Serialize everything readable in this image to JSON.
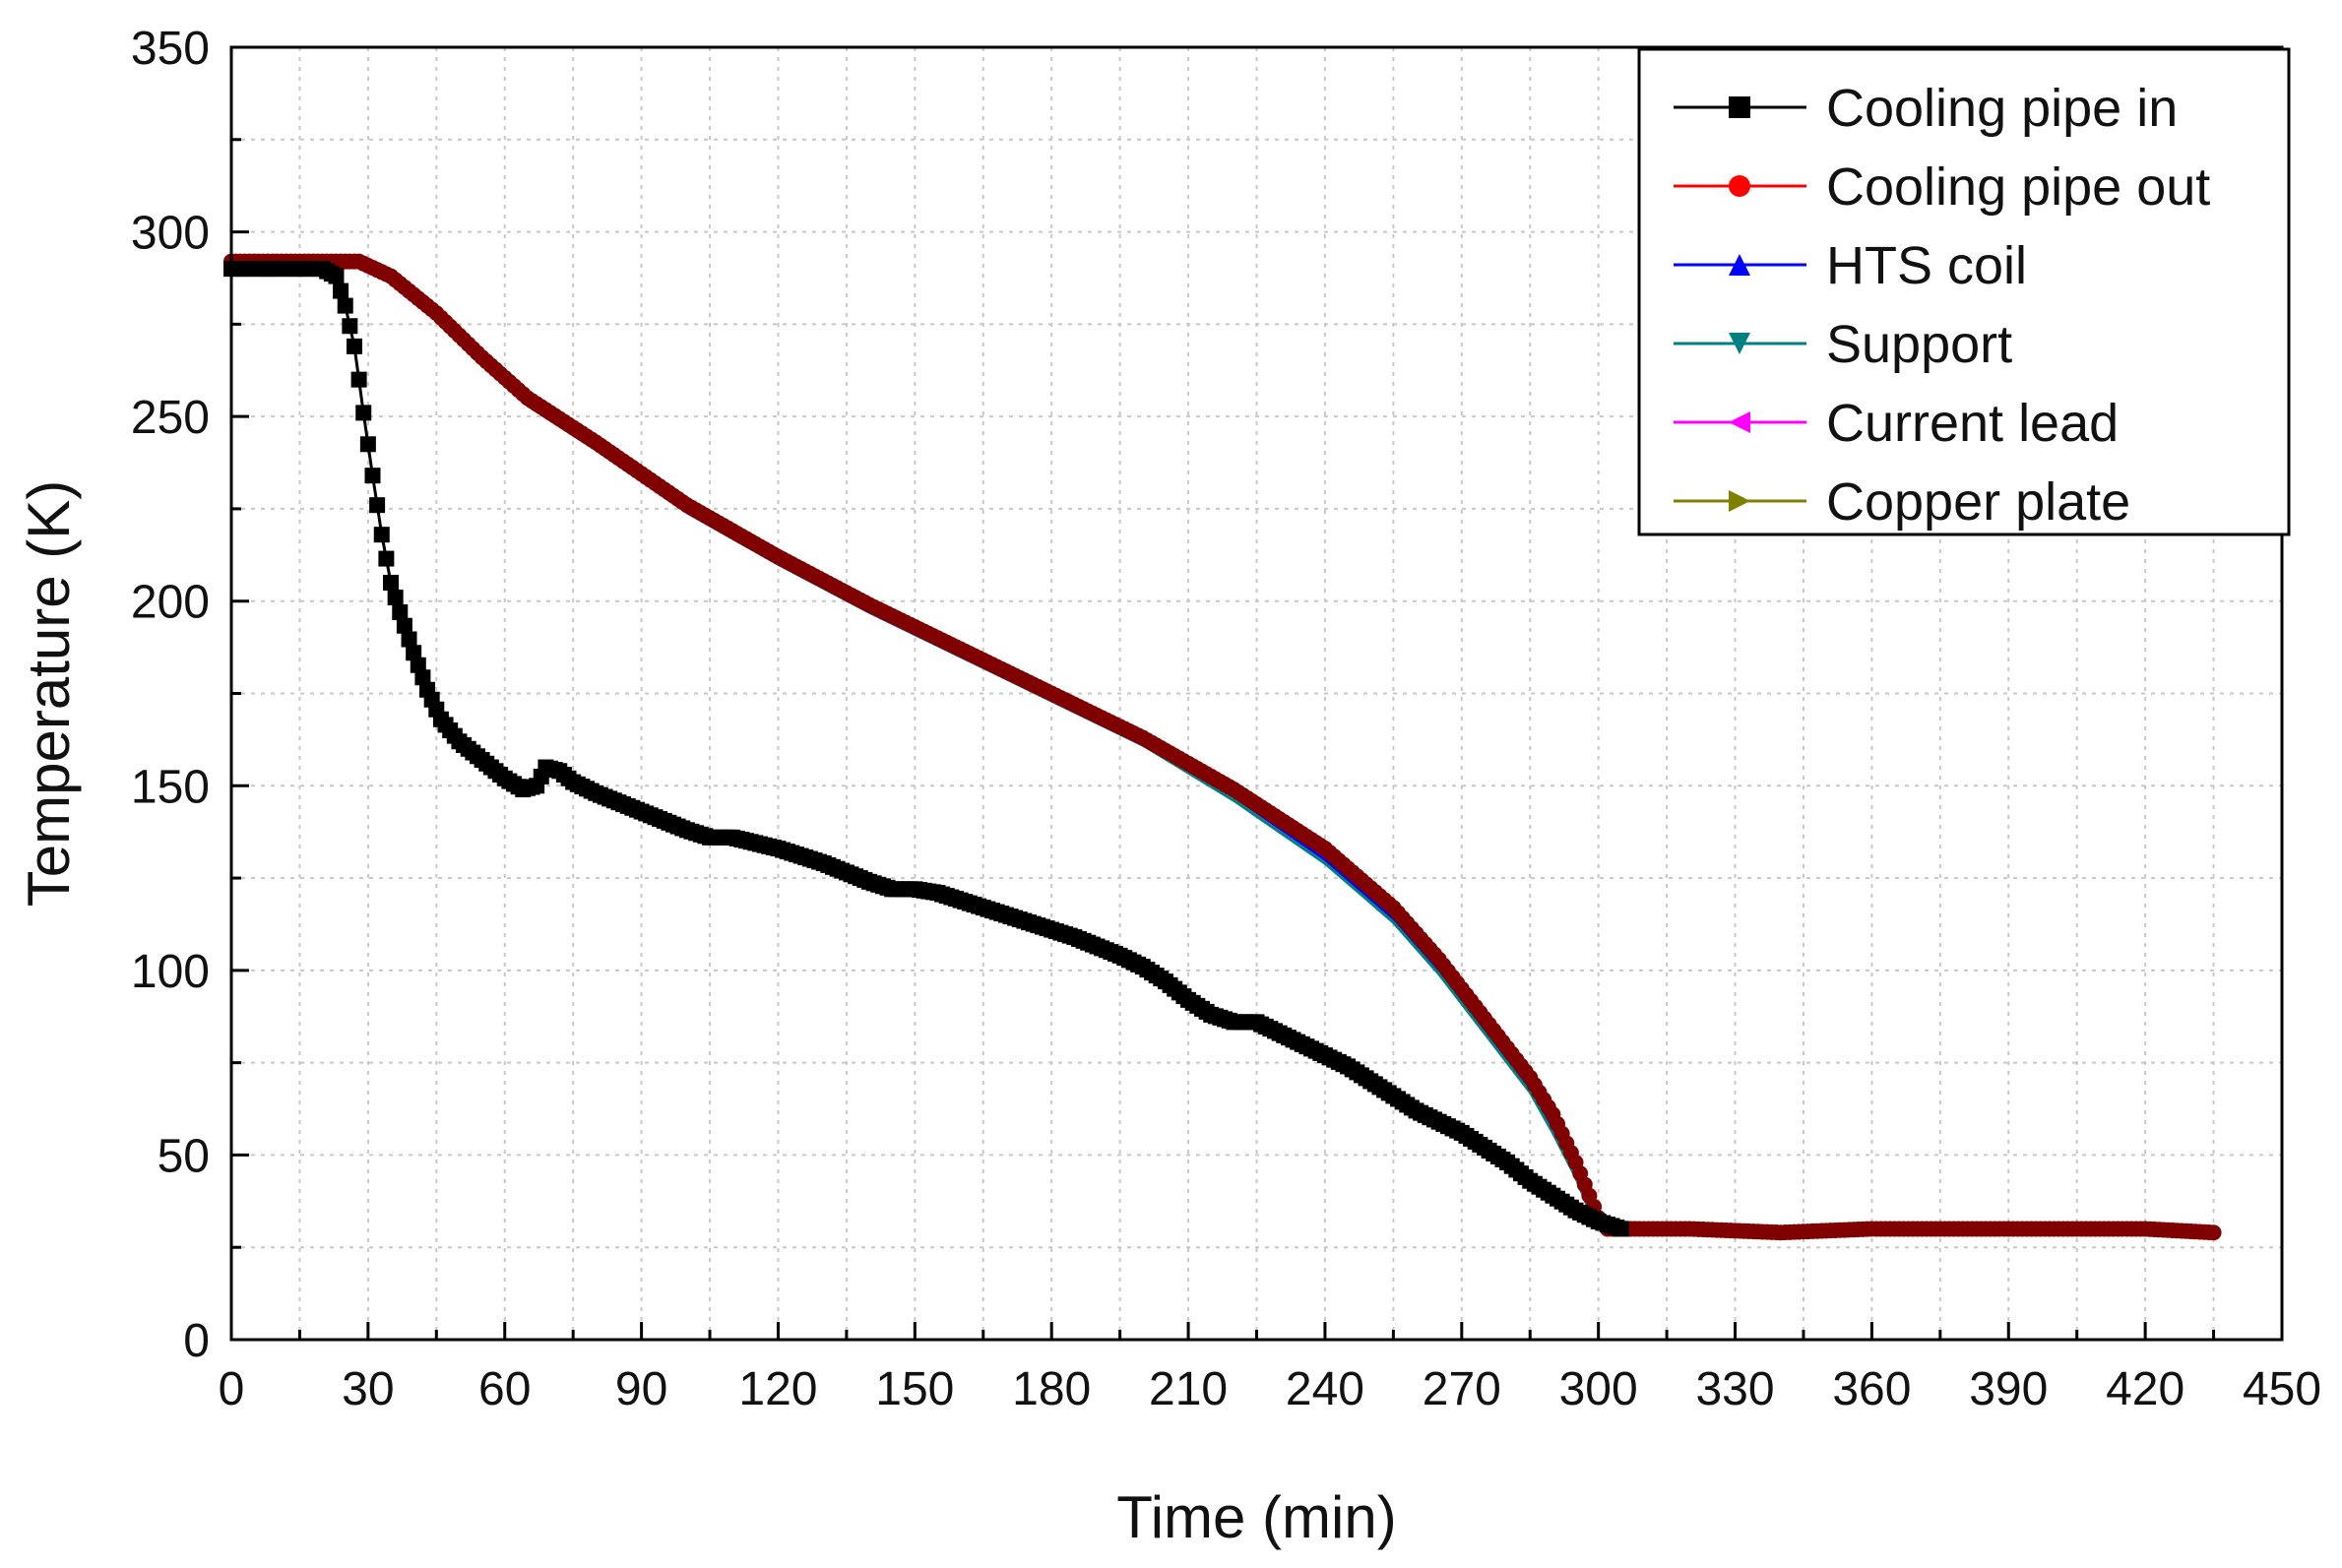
{
  "chart_data": {
    "type": "line",
    "xlabel": "Time (min)",
    "ylabel": "Temperature (K)",
    "xlim": [
      0,
      450
    ],
    "ylim": [
      0,
      350
    ],
    "xticks": [
      0,
      30,
      60,
      90,
      120,
      150,
      180,
      210,
      240,
      270,
      300,
      330,
      360,
      390,
      420,
      450
    ],
    "yticks": [
      0,
      50,
      100,
      150,
      200,
      250,
      300,
      350
    ],
    "grid": true,
    "legend_position": "top-right",
    "series": [
      {
        "name": "Cooling pipe in",
        "color": "#000000",
        "marker": "square",
        "points": [
          [
            0,
            290
          ],
          [
            10,
            290
          ],
          [
            20,
            290
          ],
          [
            23,
            288
          ],
          [
            25,
            280
          ],
          [
            27,
            269
          ],
          [
            29,
            251
          ],
          [
            31,
            234
          ],
          [
            33,
            218
          ],
          [
            35,
            205
          ],
          [
            37,
            197
          ],
          [
            40,
            186
          ],
          [
            43,
            176
          ],
          [
            46,
            168
          ],
          [
            50,
            162
          ],
          [
            55,
            157
          ],
          [
            60,
            152
          ],
          [
            64,
            149
          ],
          [
            67,
            150
          ],
          [
            69,
            155
          ],
          [
            72,
            154
          ],
          [
            75,
            151
          ],
          [
            80,
            148
          ],
          [
            90,
            143
          ],
          [
            100,
            138
          ],
          [
            105,
            136
          ],
          [
            110,
            136
          ],
          [
            120,
            133
          ],
          [
            130,
            129
          ],
          [
            140,
            124
          ],
          [
            145,
            122
          ],
          [
            150,
            122
          ],
          [
            155,
            121
          ],
          [
            165,
            117
          ],
          [
            175,
            113
          ],
          [
            185,
            109
          ],
          [
            195,
            104
          ],
          [
            200,
            101
          ],
          [
            205,
            97
          ],
          [
            210,
            92
          ],
          [
            215,
            88
          ],
          [
            220,
            86
          ],
          [
            225,
            86
          ],
          [
            230,
            83
          ],
          [
            240,
            77
          ],
          [
            245,
            74
          ],
          [
            250,
            70
          ],
          [
            255,
            66
          ],
          [
            260,
            62
          ],
          [
            265,
            59
          ],
          [
            270,
            56
          ],
          [
            275,
            52
          ],
          [
            280,
            48
          ],
          [
            285,
            43
          ],
          [
            290,
            39
          ],
          [
            295,
            35
          ],
          [
            300,
            32
          ],
          [
            305,
            30
          ]
        ]
      },
      {
        "name": "Cooling pipe out",
        "color": "#ff0000",
        "marker": "circle",
        "points": [
          [
            0,
            292
          ],
          [
            20,
            292
          ],
          [
            28,
            292
          ],
          [
            35,
            288
          ],
          [
            45,
            277
          ],
          [
            55,
            265
          ],
          [
            65,
            254
          ],
          [
            80,
            242
          ],
          [
            100,
            225
          ],
          [
            120,
            211
          ],
          [
            140,
            198
          ],
          [
            160,
            186
          ],
          [
            180,
            174
          ],
          [
            200,
            162
          ],
          [
            220,
            148
          ],
          [
            240,
            132
          ],
          [
            255,
            116
          ],
          [
            265,
            102
          ],
          [
            275,
            86
          ],
          [
            285,
            70
          ],
          [
            290,
            60
          ],
          [
            295,
            47
          ],
          [
            298,
            38
          ],
          [
            300,
            32
          ],
          [
            302,
            30
          ],
          [
            320,
            30
          ],
          [
            340,
            29
          ],
          [
            360,
            30
          ],
          [
            380,
            30
          ],
          [
            400,
            30
          ],
          [
            420,
            30
          ],
          [
            435,
            29
          ]
        ]
      },
      {
        "name": "HTS coil",
        "color": "#0000ff",
        "marker": "triangle-up",
        "points": [
          [
            0,
            291
          ],
          [
            20,
            291
          ],
          [
            28,
            291
          ],
          [
            35,
            287
          ],
          [
            45,
            276
          ],
          [
            55,
            264
          ],
          [
            65,
            253
          ],
          [
            80,
            241
          ],
          [
            100,
            224
          ],
          [
            120,
            210
          ],
          [
            140,
            197
          ],
          [
            160,
            185
          ],
          [
            180,
            173
          ],
          [
            200,
            161
          ],
          [
            220,
            147
          ],
          [
            240,
            130
          ],
          [
            255,
            114
          ],
          [
            265,
            100
          ],
          [
            275,
            84
          ],
          [
            285,
            68
          ],
          [
            290,
            57
          ],
          [
            295,
            45
          ],
          [
            298,
            36
          ],
          [
            300,
            30
          ],
          [
            302,
            29
          ],
          [
            320,
            29
          ],
          [
            340,
            28
          ],
          [
            360,
            29
          ],
          [
            380,
            29
          ],
          [
            400,
            29
          ],
          [
            420,
            29
          ],
          [
            435,
            28
          ]
        ]
      },
      {
        "name": "Support",
        "color": "#008080",
        "marker": "triangle-down",
        "points": [
          [
            0,
            291
          ],
          [
            20,
            291
          ],
          [
            28,
            291
          ],
          [
            35,
            287
          ],
          [
            45,
            276
          ],
          [
            55,
            264
          ],
          [
            65,
            253
          ],
          [
            80,
            241
          ],
          [
            100,
            224
          ],
          [
            120,
            210
          ],
          [
            140,
            197
          ],
          [
            160,
            185
          ],
          [
            180,
            173
          ],
          [
            200,
            161
          ],
          [
            220,
            146
          ],
          [
            240,
            129
          ],
          [
            255,
            113
          ],
          [
            265,
            99
          ],
          [
            275,
            83
          ],
          [
            285,
            67
          ],
          [
            290,
            56
          ],
          [
            295,
            44
          ],
          [
            298,
            35
          ],
          [
            300,
            30
          ],
          [
            302,
            29
          ],
          [
            320,
            29
          ],
          [
            340,
            28
          ],
          [
            360,
            29
          ],
          [
            380,
            29
          ],
          [
            400,
            29
          ],
          [
            420,
            29
          ],
          [
            435,
            28
          ]
        ]
      },
      {
        "name": "Current lead",
        "color": "#ff00ff",
        "marker": "triangle-left",
        "points": [
          [
            0,
            292
          ],
          [
            20,
            292
          ],
          [
            28,
            292
          ],
          [
            35,
            288
          ],
          [
            45,
            277
          ],
          [
            55,
            265
          ],
          [
            65,
            254
          ],
          [
            80,
            242
          ],
          [
            100,
            225
          ],
          [
            120,
            211
          ],
          [
            140,
            198
          ],
          [
            160,
            186
          ],
          [
            180,
            174
          ],
          [
            200,
            162
          ],
          [
            220,
            148
          ],
          [
            240,
            132
          ],
          [
            255,
            116
          ],
          [
            265,
            102
          ],
          [
            275,
            86
          ],
          [
            285,
            70
          ],
          [
            290,
            60
          ],
          [
            295,
            47
          ],
          [
            298,
            38
          ],
          [
            300,
            32
          ],
          [
            302,
            30
          ],
          [
            320,
            30
          ],
          [
            340,
            29
          ],
          [
            360,
            30
          ],
          [
            380,
            30
          ],
          [
            400,
            30
          ],
          [
            420,
            30
          ],
          [
            435,
            29
          ]
        ]
      },
      {
        "name": "Copper plate",
        "color": "#808000",
        "marker": "triangle-right",
        "points": [
          [
            0,
            290
          ],
          [
            20,
            290
          ],
          [
            28,
            291
          ],
          [
            35,
            288
          ],
          [
            45,
            278
          ],
          [
            55,
            267
          ],
          [
            65,
            256
          ],
          [
            80,
            244
          ],
          [
            100,
            227
          ],
          [
            120,
            213
          ],
          [
            140,
            200
          ],
          [
            160,
            188
          ],
          [
            180,
            176
          ],
          [
            200,
            164
          ],
          [
            220,
            150
          ],
          [
            240,
            134
          ],
          [
            255,
            118
          ],
          [
            265,
            104
          ],
          [
            275,
            88
          ],
          [
            285,
            73
          ],
          [
            290,
            63
          ],
          [
            295,
            50
          ],
          [
            298,
            41
          ],
          [
            300,
            35
          ],
          [
            302,
            32
          ],
          [
            320,
            31
          ],
          [
            340,
            30
          ],
          [
            360,
            31
          ],
          [
            380,
            31
          ],
          [
            400,
            31
          ],
          [
            420,
            31
          ],
          [
            435,
            30
          ]
        ]
      }
    ],
    "overlay": {
      "name": "dense marker band",
      "color": "#800000",
      "points": [
        [
          0,
          292
        ],
        [
          20,
          292
        ],
        [
          28,
          292
        ],
        [
          35,
          288
        ],
        [
          45,
          278
        ],
        [
          55,
          266
        ],
        [
          65,
          255
        ],
        [
          80,
          243
        ],
        [
          100,
          226
        ],
        [
          120,
          212
        ],
        [
          140,
          199
        ],
        [
          160,
          187
        ],
        [
          180,
          175
        ],
        [
          200,
          163
        ],
        [
          220,
          149
        ],
        [
          240,
          133
        ],
        [
          255,
          117
        ],
        [
          265,
          103
        ],
        [
          275,
          87
        ],
        [
          285,
          71
        ],
        [
          290,
          61
        ],
        [
          295,
          48
        ],
        [
          298,
          39
        ],
        [
          300,
          33
        ],
        [
          302,
          30
        ],
        [
          320,
          30
        ],
        [
          340,
          29
        ],
        [
          360,
          30
        ],
        [
          380,
          30
        ],
        [
          400,
          30
        ],
        [
          420,
          30
        ],
        [
          435,
          29
        ]
      ]
    }
  }
}
